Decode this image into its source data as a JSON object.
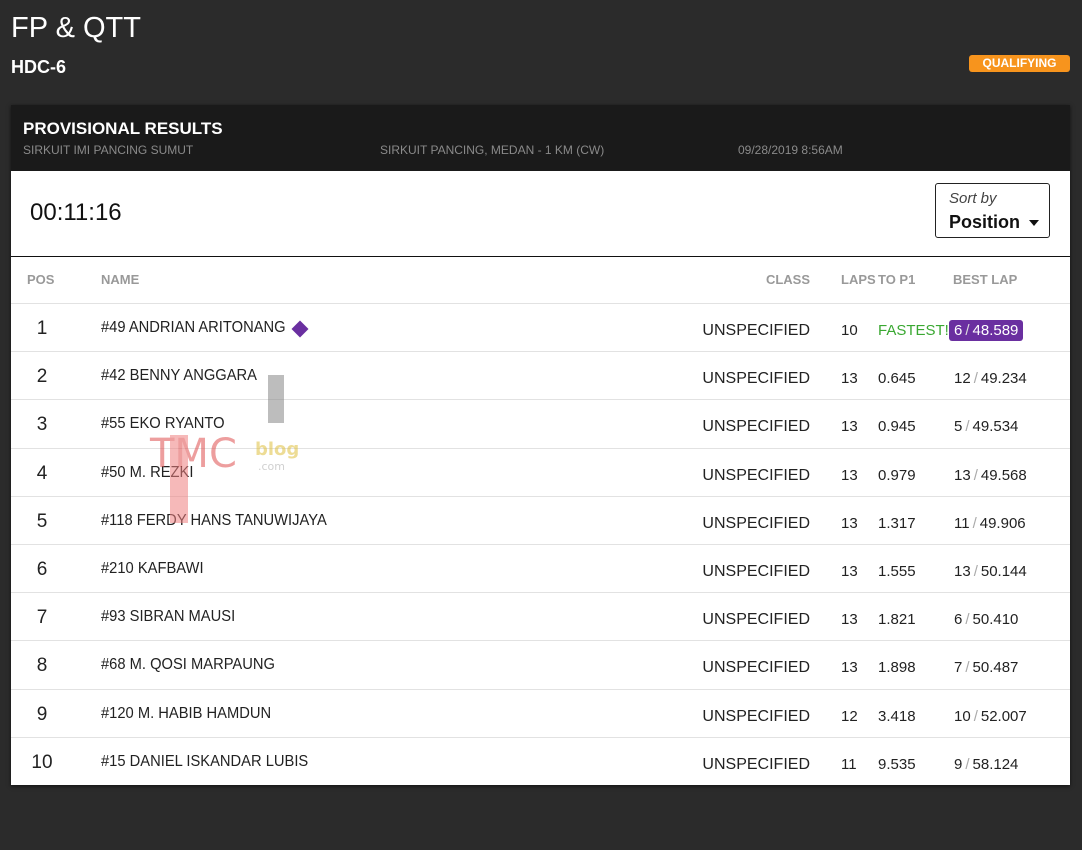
{
  "header": {
    "title": "FP & QTT",
    "subtitle": "HDC-6",
    "badge": "QUALIFYING"
  },
  "panel": {
    "title": "PROVISIONAL RESULTS",
    "event": "SIRKUIT IMI PANCING SUMUT",
    "track": "SIRKUIT PANCING, MEDAN - 1 KM (CW)",
    "datetime": "09/28/2019 8:56AM",
    "timer": "00:11:16",
    "sort": {
      "label": "Sort by",
      "value": "Position"
    }
  },
  "table": {
    "columns": [
      "POS",
      "NAME",
      "CLASS",
      "LAPS",
      "TO P1",
      "BEST LAP"
    ],
    "separator": "/",
    "rows": [
      {
        "pos": "1",
        "name": "#49 ANDRIAN ARITONANG",
        "class": "UNSPECIFIED",
        "laps": "10",
        "gap": "FASTEST!",
        "best_lap": "6",
        "best_time": "48.589",
        "fastest": true
      },
      {
        "pos": "2",
        "name": "#42 BENNY ANGGARA",
        "class": "UNSPECIFIED",
        "laps": "13",
        "gap": "0.645",
        "best_lap": "12",
        "best_time": "49.234"
      },
      {
        "pos": "3",
        "name": "#55 EKO RYANTO",
        "class": "UNSPECIFIED",
        "laps": "13",
        "gap": "0.945",
        "best_lap": "5",
        "best_time": "49.534"
      },
      {
        "pos": "4",
        "name": "#50 M. REZKI",
        "class": "UNSPECIFIED",
        "laps": "13",
        "gap": "0.979",
        "best_lap": "13",
        "best_time": "49.568"
      },
      {
        "pos": "5",
        "name": "#118 FERDY HANS TANUWIJAYA",
        "class": "UNSPECIFIED",
        "laps": "13",
        "gap": "1.317",
        "best_lap": "11",
        "best_time": "49.906"
      },
      {
        "pos": "6",
        "name": "#210 KAFBAWI",
        "class": "UNSPECIFIED",
        "laps": "13",
        "gap": "1.555",
        "best_lap": "13",
        "best_time": "50.144"
      },
      {
        "pos": "7",
        "name": "#93 SIBRAN MAUSI",
        "class": "UNSPECIFIED",
        "laps": "13",
        "gap": "1.821",
        "best_lap": "6",
        "best_time": "50.410"
      },
      {
        "pos": "8",
        "name": "#68 M. QOSI MARPAUNG",
        "class": "UNSPECIFIED",
        "laps": "13",
        "gap": "1.898",
        "best_lap": "7",
        "best_time": "50.487"
      },
      {
        "pos": "9",
        "name": "#120 M. HABIB HAMDUN",
        "class": "UNSPECIFIED",
        "laps": "12",
        "gap": "3.418",
        "best_lap": "10",
        "best_time": "52.007"
      },
      {
        "pos": "10",
        "name": "#15 DANIEL ISKANDAR LUBIS",
        "class": "UNSPECIFIED",
        "laps": "11",
        "gap": "9.535",
        "best_lap": "9",
        "best_time": "58.124"
      }
    ]
  },
  "watermark": {
    "brand": "TMC",
    "word": "blog",
    "suffix": ".com"
  }
}
